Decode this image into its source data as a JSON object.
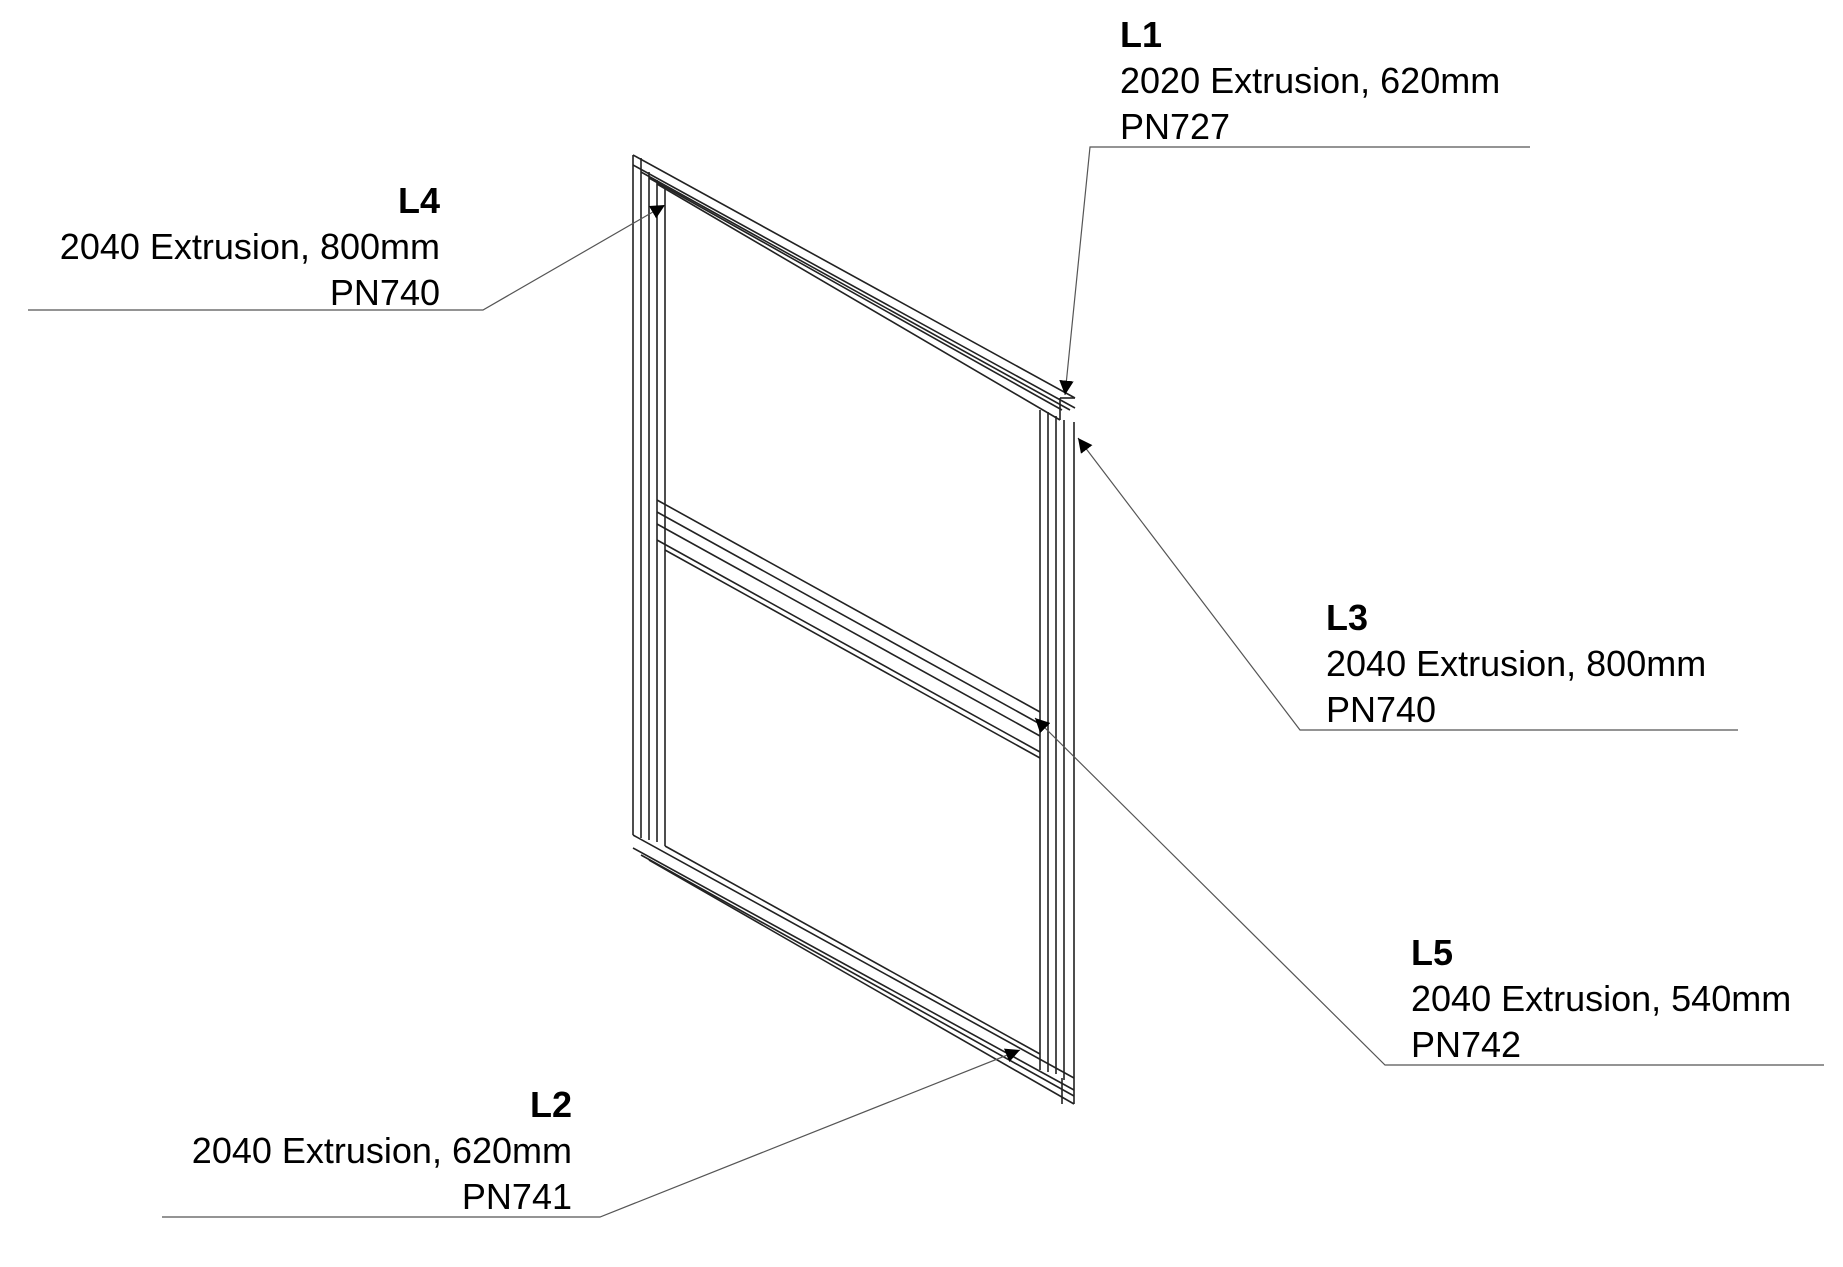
{
  "callouts": {
    "l1": {
      "tag": "L1",
      "description": "2020 Extrusion, 620mm",
      "part_number": "PN727"
    },
    "l2": {
      "tag": "L2",
      "description": "2040 Extrusion, 620mm",
      "part_number": "PN741"
    },
    "l3": {
      "tag": "L3",
      "description": "2040 Extrusion, 800mm",
      "part_number": "PN740"
    },
    "l4": {
      "tag": "L4",
      "description": "2040 Extrusion, 800mm",
      "part_number": "PN740"
    },
    "l5": {
      "tag": "L5",
      "description": "2040 Extrusion, 540mm",
      "part_number": "PN742"
    }
  },
  "colors": {
    "line": "#000000",
    "frame": "#222222",
    "leader": "#555555",
    "background": "#ffffff"
  }
}
